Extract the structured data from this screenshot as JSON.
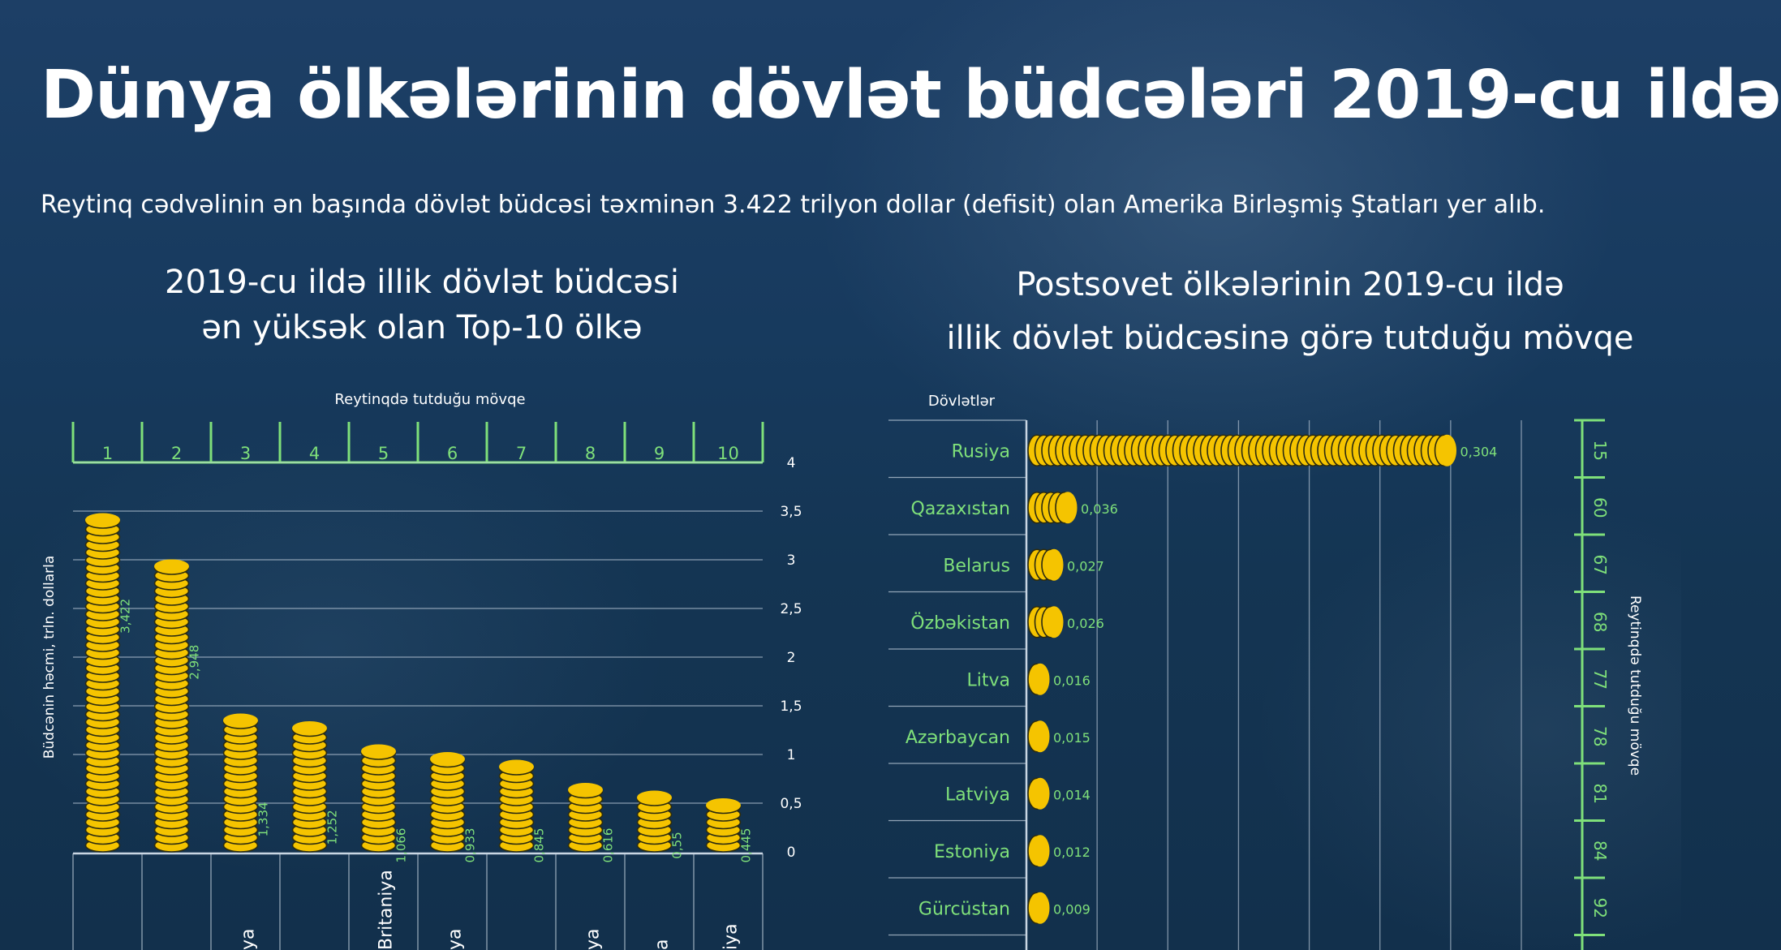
{
  "title": "Dünya ölkələrinin dövlət büdcələri 2019-cu ildə",
  "subtitle": "Reytinq cədvəlinin ən başında dövlət büdcəsi təxminən 3.422 trilyon dollar (defisit) olan Amerika Birləşmiş Ştatları yer alıb.",
  "colors": {
    "coin": "#f5c400",
    "coin_edge": "#2a2a10",
    "green": "#7fe07a",
    "grid": "#c9d6e3"
  },
  "chart_data": [
    {
      "type": "bar",
      "title_line1": "2019-cu ildə illik dövlət büdcəsi",
      "title_line2": "ən yüksək olan Top-10 ölkə",
      "rank_axis_label": "Reytinqdə tutduğu mövqe",
      "ylabel": "Büdcənin həcmi, trln. dollarla",
      "ylim": [
        0,
        4
      ],
      "yticks": [
        "0",
        "0,5",
        "1",
        "1,5",
        "2",
        "2,5",
        "3",
        "3,5",
        "4"
      ],
      "ranks": [
        "1",
        "2",
        "3",
        "4",
        "5",
        "6",
        "7",
        "8",
        "9",
        "10"
      ],
      "values": [
        3.422,
        2.948,
        1.334,
        1.252,
        1.066,
        0.933,
        0.845,
        0.616,
        0.55,
        0.445
      ],
      "value_labels": [
        "3,422",
        "2,948",
        "1,334",
        "1,252",
        "1,066",
        "0,933",
        "0,845",
        "0,616",
        "0,55",
        "0,445"
      ],
      "categories": [
        "",
        "",
        "ya",
        "",
        "Britaniya",
        "ya",
        "",
        "ya",
        "a",
        "iya"
      ]
    },
    {
      "type": "bar",
      "orientation": "horizontal",
      "title_line1": "Postsovet ölkələrinin 2019-cu ildə",
      "title_line2": "illik dövlət büdcəsinə görə tutduğu mövqe",
      "category_axis_label": "Dövlətlər",
      "rank_axis_label": "Reytinqdə tutduğu mövqe",
      "categories": [
        "Rusiya",
        "Qazaxıstan",
        "Belarus",
        "Özbəkistan",
        "Litva",
        "Azərbaycan",
        "Latviya",
        "Estoniya",
        "Gürcüstan"
      ],
      "values": [
        0.304,
        0.036,
        0.027,
        0.026,
        0.016,
        0.015,
        0.014,
        0.012,
        0.009
      ],
      "value_labels": [
        "0,304",
        "0,036",
        "0,027",
        "0,026",
        "0,016",
        "0,015",
        "0,014",
        "0,012",
        "0,009"
      ],
      "ranks": [
        "15",
        "60",
        "67",
        "68",
        "77",
        "78",
        "81",
        "84",
        "92"
      ],
      "xlim": [
        0,
        0.35
      ]
    }
  ]
}
